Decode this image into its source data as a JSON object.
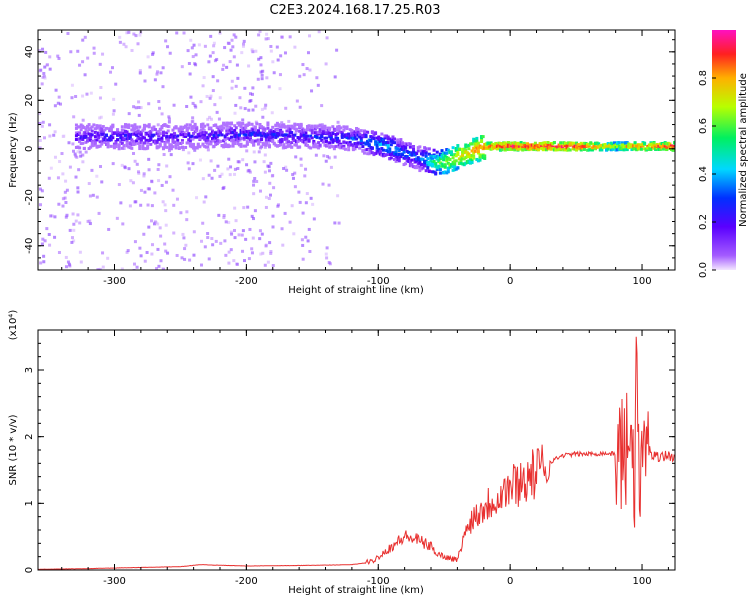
{
  "title": "C2E3.2024.168.17.25.R03",
  "colors": {
    "line": "#e8302f",
    "axis": "#000000"
  },
  "chart_data": [
    {
      "type": "heatmap",
      "xlabel": "Height of straight line (km)",
      "ylabel": "Frequency (Hz)",
      "xlim": [
        -358,
        125
      ],
      "ylim": [
        -50,
        49
      ],
      "x_ticks": [
        -300,
        -200,
        -100,
        0,
        100
      ],
      "y_ticks": [
        -40,
        -20,
        0,
        20,
        40
      ],
      "x_tick_labels": [
        "-300",
        "-200",
        "-100",
        "0",
        "100"
      ],
      "y_tick_labels": [
        "-40",
        "-20",
        "0",
        "20",
        "40"
      ],
      "colorbar": {
        "label": "Normalized spectral amplitude",
        "range": [
          0,
          1
        ],
        "ticks": [
          0.0,
          0.2,
          0.4,
          0.6,
          0.8
        ],
        "tick_labels": [
          "0.0",
          "0.2",
          "0.4",
          "0.6",
          "0.8"
        ]
      },
      "ridge": {
        "x": [
          -330,
          -300,
          -250,
          -200,
          -150,
          -120,
          -100,
          -90,
          -80,
          -70,
          -62,
          -55,
          -48,
          -40,
          -30,
          -20,
          0,
          50,
          80,
          90,
          100,
          125
        ],
        "frequency": [
          5,
          5,
          5,
          6,
          5,
          4,
          2,
          0,
          -2,
          -4,
          -5,
          -6,
          -5,
          -3,
          -1,
          1,
          1,
          1,
          1,
          1,
          1,
          1
        ],
        "amplitude": [
          0.2,
          0.25,
          0.2,
          0.25,
          0.25,
          0.3,
          0.4,
          0.4,
          0.35,
          0.3,
          0.5,
          0.6,
          0.7,
          0.75,
          0.8,
          0.85,
          0.95,
          0.95,
          0.7,
          0.8,
          0.85,
          0.9
        ]
      }
    },
    {
      "type": "line",
      "xlabel": "Height of straight line (km)",
      "ylabel": "SNR (10 * v/v)",
      "y_multiplier": "(x10⁴)",
      "xlim": [
        -358,
        125
      ],
      "ylim": [
        0,
        3.6
      ],
      "x_ticks": [
        -300,
        -200,
        -100,
        0,
        100
      ],
      "y_ticks": [
        0,
        1,
        2,
        3
      ],
      "x_tick_labels": [
        "-300",
        "-200",
        "-100",
        "0",
        "100"
      ],
      "y_tick_labels": [
        "0",
        "1",
        "2",
        "3"
      ],
      "series": [
        {
          "x": [
            -358,
            -320,
            -300,
            -250,
            -235,
            -200,
            -150,
            -120,
            -105,
            -100,
            -90,
            -80,
            -70,
            -60,
            -55,
            -50,
            -40,
            -35,
            -30,
            -20,
            -10,
            0,
            10,
            20,
            30,
            40,
            50,
            60,
            70,
            80,
            85,
            90,
            92,
            94,
            96,
            98,
            100,
            105,
            110,
            115,
            125
          ],
          "y": [
            0.01,
            0.02,
            0.03,
            0.05,
            0.08,
            0.06,
            0.07,
            0.08,
            0.12,
            0.2,
            0.35,
            0.5,
            0.45,
            0.35,
            0.25,
            0.2,
            0.15,
            0.5,
            0.75,
            0.95,
            1.1,
            1.25,
            1.35,
            1.45,
            1.62,
            1.72,
            1.74,
            1.74,
            1.75,
            1.74,
            1.76,
            1.8,
            2.9,
            0.6,
            3.5,
            0.9,
            1.7,
            1.8,
            1.7,
            1.72,
            1.7
          ]
        }
      ]
    }
  ]
}
